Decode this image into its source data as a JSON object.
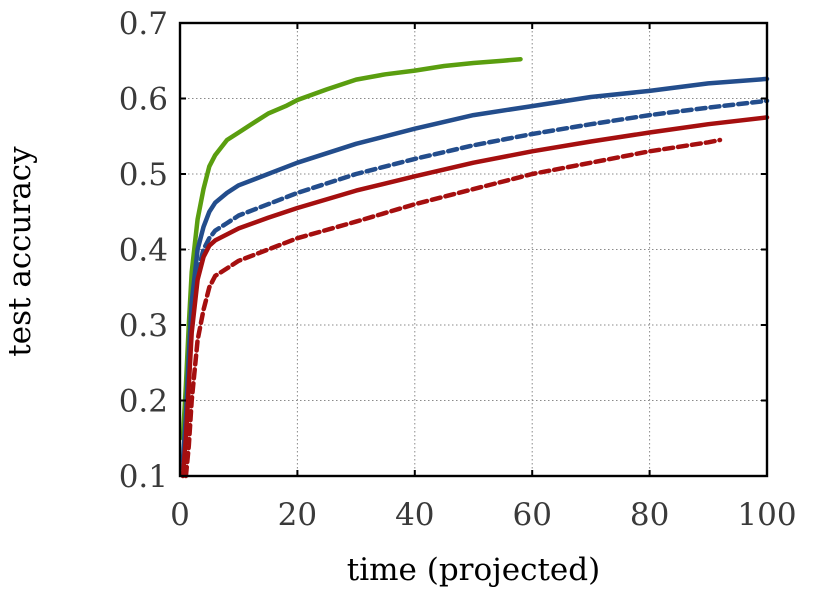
{
  "chart_data": {
    "type": "line",
    "title": "",
    "xlabel": "time (projected)",
    "ylabel": "test accuracy",
    "xlim": [
      0,
      100
    ],
    "ylim": [
      0.1,
      0.7
    ],
    "xticks": [
      0,
      20,
      40,
      60,
      80,
      100
    ],
    "yticks": [
      0.1,
      0.2,
      0.3,
      0.4,
      0.5,
      0.6,
      0.7
    ],
    "xtick_labels": [
      "0",
      "20",
      "40",
      "60",
      "80",
      "100"
    ],
    "ytick_labels": [
      "0.1",
      "0.2",
      "0.3",
      "0.4",
      "0.5",
      "0.6",
      "0.7"
    ],
    "grid": true,
    "legend": "none",
    "series": [
      {
        "color": "#5a9e0f",
        "style": "solid",
        "x": [
          0.5,
          1,
          1.5,
          2,
          3,
          4,
          5,
          6,
          8,
          10,
          12,
          15,
          18,
          20,
          25,
          30,
          35,
          40,
          45,
          50,
          55,
          58
        ],
        "y": [
          0.15,
          0.22,
          0.3,
          0.37,
          0.44,
          0.48,
          0.51,
          0.525,
          0.545,
          0.555,
          0.565,
          0.58,
          0.59,
          0.598,
          0.612,
          0.625,
          0.632,
          0.637,
          0.643,
          0.647,
          0.65,
          0.652
        ]
      },
      {
        "color": "#234d8c",
        "style": "solid",
        "x": [
          0.5,
          1,
          1.5,
          2,
          3,
          4,
          5,
          6,
          8,
          10,
          15,
          20,
          30,
          40,
          50,
          60,
          70,
          80,
          90,
          100
        ],
        "y": [
          0.12,
          0.18,
          0.26,
          0.33,
          0.4,
          0.43,
          0.45,
          0.462,
          0.475,
          0.485,
          0.5,
          0.515,
          0.54,
          0.56,
          0.578,
          0.59,
          0.602,
          0.61,
          0.62,
          0.626
        ]
      },
      {
        "color": "#234d8c",
        "style": "dashed",
        "x": [
          0.5,
          1,
          1.5,
          2,
          3,
          4,
          5,
          6,
          8,
          10,
          15,
          20,
          30,
          40,
          50,
          60,
          70,
          80,
          90,
          100
        ],
        "y": [
          0.11,
          0.16,
          0.23,
          0.3,
          0.37,
          0.4,
          0.415,
          0.425,
          0.435,
          0.445,
          0.46,
          0.475,
          0.5,
          0.52,
          0.538,
          0.553,
          0.566,
          0.578,
          0.588,
          0.597
        ]
      },
      {
        "color": "#a50f0f",
        "style": "solid",
        "x": [
          0.5,
          1,
          1.5,
          2,
          3,
          4,
          5,
          6,
          8,
          10,
          15,
          20,
          30,
          40,
          50,
          60,
          70,
          80,
          90,
          100
        ],
        "y": [
          0.1,
          0.15,
          0.22,
          0.29,
          0.36,
          0.39,
          0.405,
          0.412,
          0.42,
          0.428,
          0.442,
          0.455,
          0.478,
          0.497,
          0.515,
          0.53,
          0.543,
          0.555,
          0.566,
          0.575
        ]
      },
      {
        "color": "#a50f0f",
        "style": "dashed",
        "x": [
          1,
          1.5,
          2,
          3,
          4,
          5,
          6,
          8,
          10,
          15,
          20,
          30,
          40,
          50,
          60,
          70,
          80,
          90,
          92
        ],
        "y": [
          0.1,
          0.14,
          0.2,
          0.28,
          0.32,
          0.35,
          0.365,
          0.375,
          0.385,
          0.4,
          0.415,
          0.437,
          0.46,
          0.48,
          0.5,
          0.515,
          0.53,
          0.542,
          0.545
        ]
      }
    ]
  }
}
